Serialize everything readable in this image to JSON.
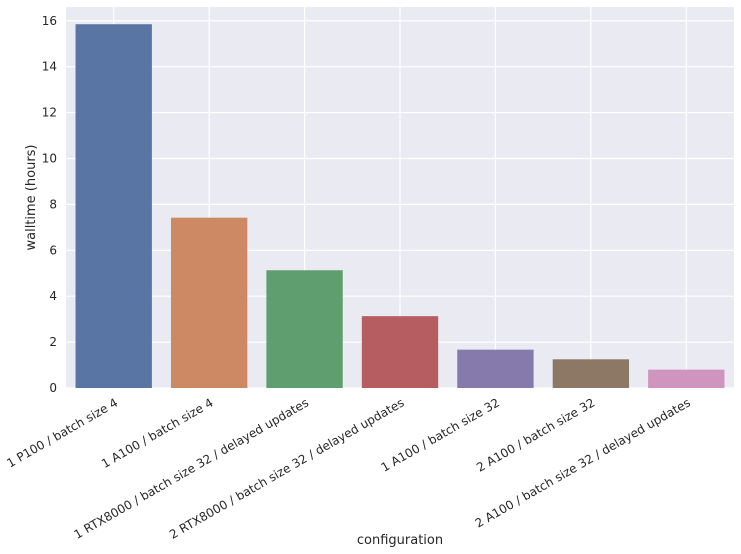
{
  "chart_data": {
    "type": "bar",
    "title": "",
    "xlabel": "configuration",
    "ylabel": "walltime (hours)",
    "ylim": [
      0,
      16.6
    ],
    "yticks": [
      0,
      2,
      4,
      6,
      8,
      10,
      12,
      14,
      16
    ],
    "grid": true,
    "legend": "none",
    "background_color": "#eaeaf2",
    "grid_color": "#ffffff",
    "categories": [
      "1 P100 / batch size 4",
      "1 A100 / batch size 4",
      "1 RTX8000 / batch size 32 / delayed updates",
      "2 RTX8000 / batch size 32 / delayed updates",
      "1 A100 / batch size 32",
      "2 A100 / batch size 32",
      "2 A100 / batch size 32 / delayed updates"
    ],
    "values": [
      15.85,
      7.42,
      5.13,
      3.13,
      1.67,
      1.25,
      0.8
    ],
    "colors": [
      "#5975a4",
      "#cc8963",
      "#5f9e6e",
      "#b55d60",
      "#857aab",
      "#8d7866",
      "#d095bf"
    ]
  }
}
